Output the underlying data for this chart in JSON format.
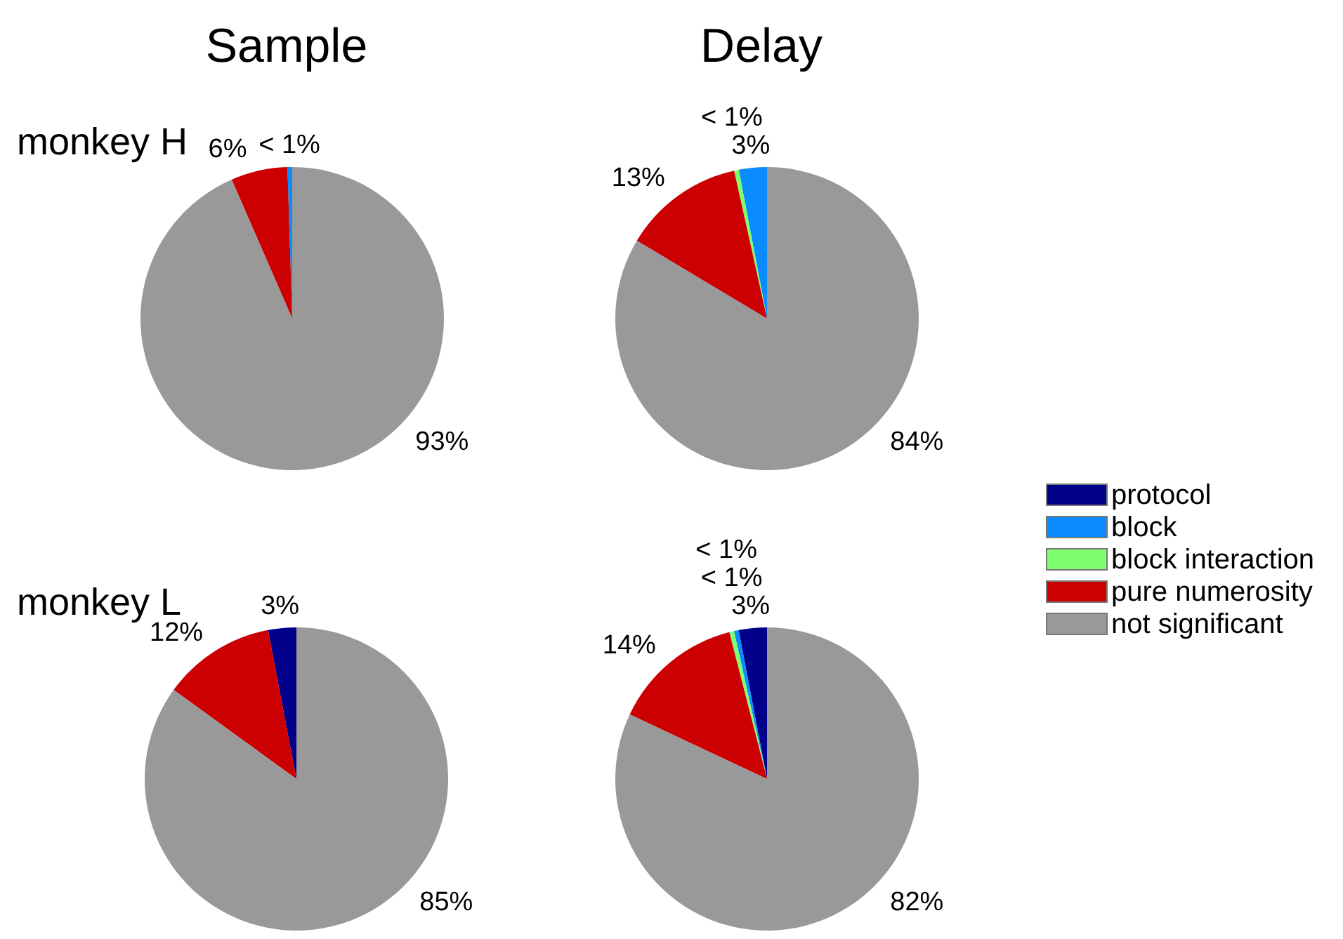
{
  "chart_data": [
    {
      "type": "pie",
      "title": "Sample",
      "annotations": [
        "monkey H"
      ],
      "categories": [
        "protocol",
        "block",
        "block interaction",
        "pure numerosity",
        "not significant"
      ],
      "values": [
        0,
        0.5,
        0,
        6,
        93
      ],
      "value_labels": [
        null,
        "< 1%",
        null,
        "6%",
        "93%"
      ],
      "colors": [
        "#00008b",
        "#0a8cff",
        "#80ff6e",
        "#cc0000",
        "#999999"
      ],
      "legend": "right"
    },
    {
      "type": "pie",
      "title": "Delay",
      "categories": [
        null,
        null,
        null,
        null,
        null
      ],
      "values": [
        0,
        3,
        0.5,
        13,
        84
      ],
      "value_labels": [
        null,
        "3%",
        "< 1%",
        "13%",
        "84%"
      ],
      "colors": [
        "#00008b",
        "#0a8cff",
        "#80ff6e",
        "#cc0000",
        "#999999"
      ]
    },
    {
      "type": "pie",
      "annotations": [
        "monkey L"
      ],
      "categories": [
        null,
        null,
        null,
        null,
        null
      ],
      "values": [
        3,
        0,
        0,
        12,
        85
      ],
      "value_labels": [
        "3%",
        null,
        null,
        "12%",
        "85%"
      ],
      "colors": [
        "#00008b",
        "#0a8cff",
        "#80ff6e",
        "#cc0000",
        "#999999"
      ]
    },
    {
      "type": "pie",
      "categories": [
        null,
        null,
        null,
        null,
        null
      ],
      "values": [
        3,
        0.5,
        0.5,
        14,
        82
      ],
      "value_labels": [
        "3%",
        "< 1%",
        "< 1%",
        "14%",
        "82%"
      ],
      "colors": [
        "#00008b",
        "#0a8cff",
        "#80ff6e",
        "#cc0000",
        "#999999"
      ]
    }
  ]
}
